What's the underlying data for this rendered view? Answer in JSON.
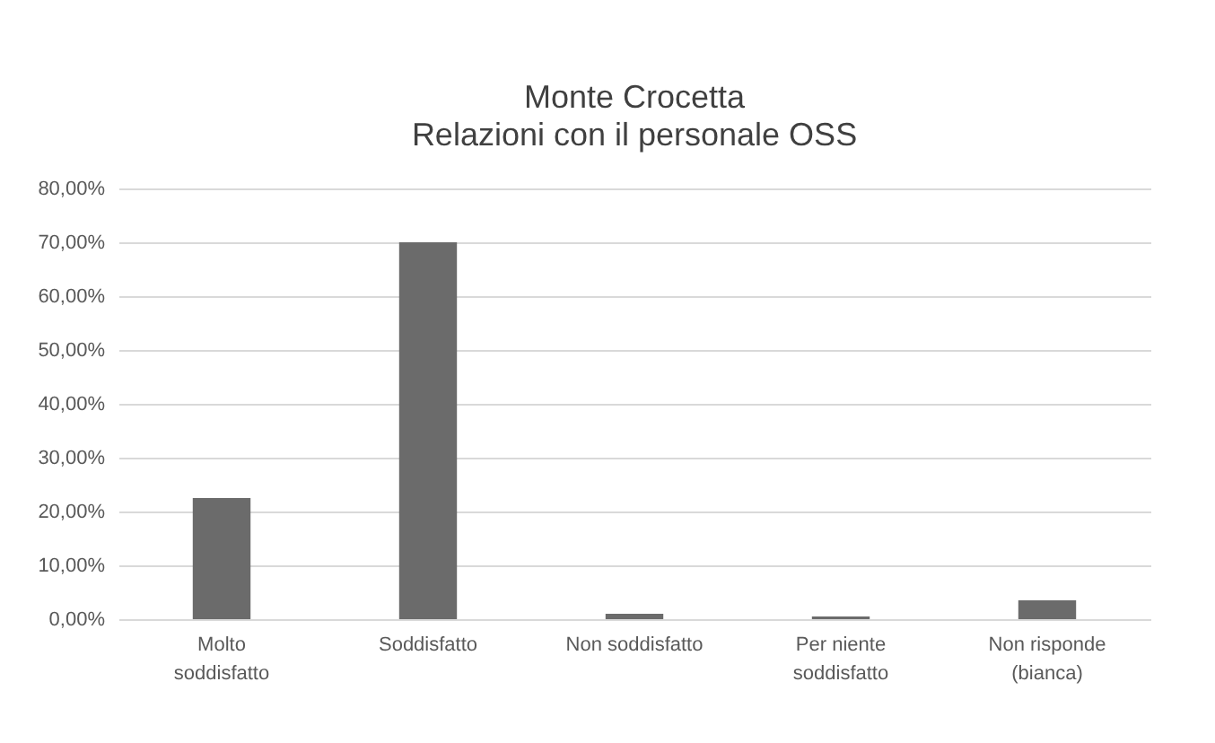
{
  "chart_data": {
    "type": "bar",
    "title": "Monte Crocetta",
    "subtitle": "Relazioni con il personale OSS",
    "categories": [
      "Molto soddisfatto",
      "Soddisfatto",
      "Non soddisfatto",
      "Per niente soddisfatto",
      "Non risponde (bianca)"
    ],
    "values": [
      22.5,
      70,
      1,
      0.5,
      3.5
    ],
    "color": "#6b6b6b",
    "ylim": [
      0,
      80
    ],
    "yticks": [
      {
        "value": 0,
        "label": "0,00%"
      },
      {
        "value": 10,
        "label": "10,00%"
      },
      {
        "value": 20,
        "label": "20,00%"
      },
      {
        "value": 30,
        "label": "30,00%"
      },
      {
        "value": 40,
        "label": "40,00%"
      },
      {
        "value": 50,
        "label": "50,00%"
      },
      {
        "value": 60,
        "label": "60,00%"
      },
      {
        "value": 70,
        "label": "70,00%"
      },
      {
        "value": 80,
        "label": "80,00%"
      }
    ],
    "grid": "y"
  }
}
